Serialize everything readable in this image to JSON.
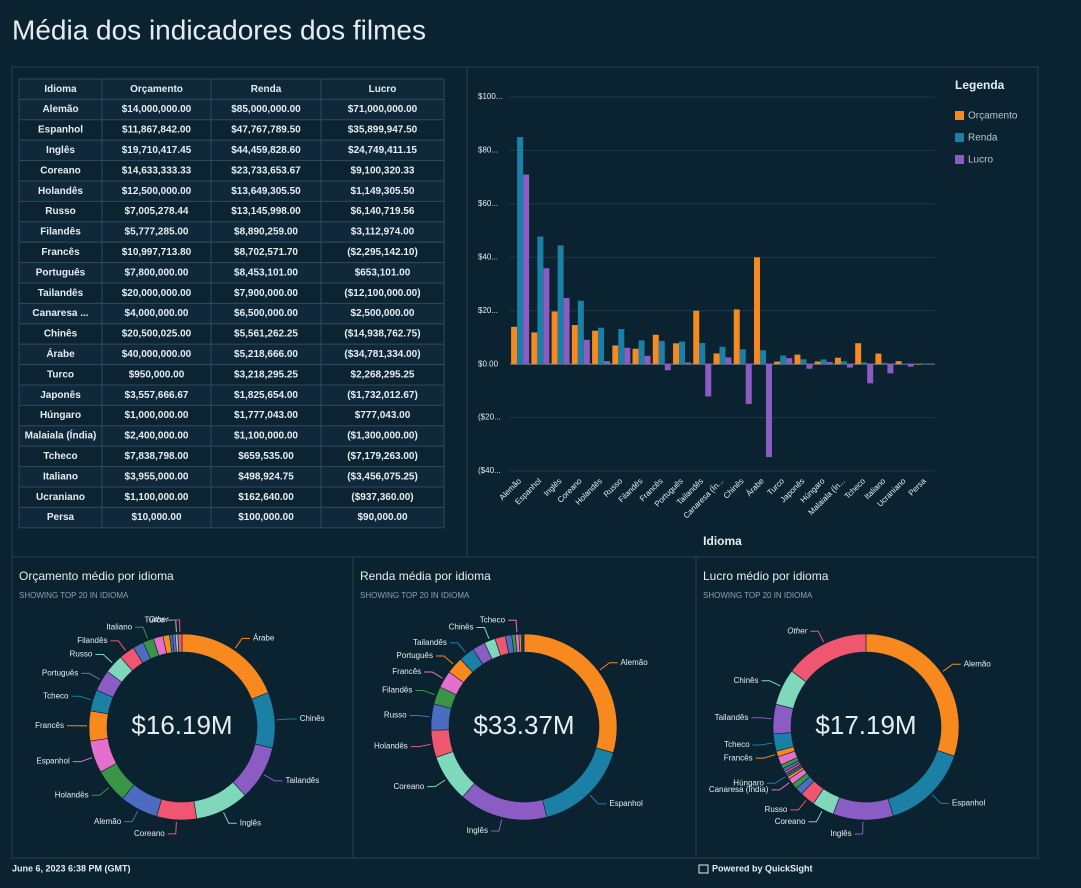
{
  "header": {
    "title": "Média dos indicadores dos filmes"
  },
  "table": {
    "columns": [
      "Idioma",
      "Orçamento",
      "Renda",
      "Lucro"
    ],
    "rows": [
      [
        "Alemão",
        "$14,000,000.00",
        "$85,000,000.00",
        "$71,000,000.00"
      ],
      [
        "Espanhol",
        "$11,867,842.00",
        "$47,767,789.50",
        "$35,899,947.50"
      ],
      [
        "Inglês",
        "$19,710,417.45",
        "$44,459,828.60",
        "$24,749,411.15"
      ],
      [
        "Coreano",
        "$14,633,333.33",
        "$23,733,653.67",
        "$9,100,320.33"
      ],
      [
        "Holandês",
        "$12,500,000.00",
        "$13,649,305.50",
        "$1,149,305.50"
      ],
      [
        "Russo",
        "$7,005,278.44",
        "$13,145,998.00",
        "$6,140,719.56"
      ],
      [
        "Filandês",
        "$5,777,285.00",
        "$8,890,259.00",
        "$3,112,974.00"
      ],
      [
        "Francês",
        "$10,997,713.80",
        "$8,702,571.70",
        "($2,295,142.10)"
      ],
      [
        "Português",
        "$7,800,000.00",
        "$8,453,101.00",
        "$653,101.00"
      ],
      [
        "Tailandês",
        "$20,000,000.00",
        "$7,900,000.00",
        "($12,100,000.00)"
      ],
      [
        "Canaresa ...",
        "$4,000,000.00",
        "$6,500,000.00",
        "$2,500,000.00"
      ],
      [
        "Chinês",
        "$20,500,025.00",
        "$5,561,262.25",
        "($14,938,762.75)"
      ],
      [
        "Árabe",
        "$40,000,000.00",
        "$5,218,666.00",
        "($34,781,334.00)"
      ],
      [
        "Turco",
        "$950,000.00",
        "$3,218,295.25",
        "$2,268,295.25"
      ],
      [
        "Japonês",
        "$3,557,666.67",
        "$1,825,654.00",
        "($1,732,012.67)"
      ],
      [
        "Húngaro",
        "$1,000,000.00",
        "$1,777,043.00",
        "$777,043.00"
      ],
      [
        "Malaiala (Índia)",
        "$2,400,000.00",
        "$1,100,000.00",
        "($1,300,000.00)"
      ],
      [
        "Tcheco",
        "$7,838,798.00",
        "$659,535.00",
        "($7,179,263.00)"
      ],
      [
        "Italiano",
        "$3,955,000.00",
        "$498,924.75",
        "($3,456,075.25)"
      ],
      [
        "Ucraniano",
        "$1,100,000.00",
        "$162,640.00",
        "($937,360.00)"
      ],
      [
        "Persa",
        "$10,000.00",
        "$100,000.00",
        "$90,000.00"
      ]
    ]
  },
  "chart_data": [
    {
      "type": "bar",
      "x_label": "Idioma",
      "legend_title": "Legenda",
      "legend": "right",
      "grid": true,
      "categories": [
        "Alemão",
        "Espanhol",
        "Inglês",
        "Coreano",
        "Holandês",
        "Russo",
        "Filandês",
        "Francês",
        "Português",
        "Tailandês",
        "Canaresa (Ín...",
        "Chinês",
        "Árabe",
        "Turco",
        "Japonês",
        "Húngaro",
        "Malaiala (Ín...",
        "Tcheco",
        "Italiano",
        "Ucraniano",
        "Persa"
      ],
      "series": [
        {
          "name": "Orçamento",
          "color": "#f7891f",
          "values": [
            14,
            11.867842,
            19.71041745,
            14.63333333,
            12.5,
            7.00527844,
            5.777285,
            10.9977138,
            7.8,
            20,
            4,
            20.500025,
            40,
            0.95,
            3.55766667,
            1,
            2.4,
            7.838798,
            3.955,
            1.1,
            0.01
          ]
        },
        {
          "name": "Renda",
          "color": "#1b80a6",
          "values": [
            85,
            47.7677895,
            44.4598286,
            23.73365367,
            13.6493055,
            13.145998,
            8.890259,
            8.7025717,
            8.453101,
            7.9,
            6.5,
            5.56126225,
            5.218666,
            3.21829525,
            1.825654,
            1.777043,
            1.1,
            0.659535,
            0.49892475,
            0.16264,
            0.1
          ]
        },
        {
          "name": "Lucro",
          "color": "#8a5cc4",
          "values": [
            71,
            35.8999475,
            24.74941115,
            9.10032033,
            1.1493055,
            6.14071956,
            3.112974,
            -2.2951421,
            0.653101,
            -12.1,
            2.5,
            -14.93876275,
            -34.781334,
            2.26829525,
            -1.73201267,
            0.777043,
            -1.3,
            -7.179263,
            -3.45607525,
            -0.93736,
            0.09
          ]
        }
      ],
      "ylim": [
        -40,
        100
      ],
      "yticks": [
        {
          "value": 100,
          "label": "$100..."
        },
        {
          "value": 80,
          "label": "$80..."
        },
        {
          "value": 60,
          "label": "$60..."
        },
        {
          "value": 40,
          "label": "$40..."
        },
        {
          "value": 20,
          "label": "$20..."
        },
        {
          "value": 0,
          "label": "$0.00"
        },
        {
          "value": -20,
          "label": "($20..."
        },
        {
          "value": -40,
          "label": "($40..."
        }
      ]
    },
    {
      "type": "pie",
      "title": "Orçamento médio por idioma",
      "subtitle": "SHOWING TOP 20 IN IDIOMA",
      "center": {
        "value": 16.19,
        "label": "$16.19M"
      },
      "colors": [
        "#f7891f",
        "#1b80a6",
        "#8a5cc4",
        "#7fd8b9",
        "#f0566f",
        "#4b6cc0",
        "#3a9646",
        "#e56fcd"
      ],
      "categories": [
        "Árabe",
        "Chinês",
        "Tailandês",
        "Inglês",
        "Coreano",
        "Alemão",
        "Holandês",
        "Espanhol",
        "Francês",
        "Tcheco",
        "Português",
        "Russo",
        "Filandês",
        null,
        "Italiano",
        null,
        null,
        null,
        null,
        "Turco",
        "Other"
      ],
      "values": [
        40,
        20.5,
        20,
        19.71,
        14.63,
        14,
        12.5,
        11.87,
        11,
        7.84,
        7.8,
        7.01,
        5.78,
        4,
        3.96,
        3.56,
        2.4,
        1.1,
        1,
        0.95,
        1.5
      ]
    },
    {
      "type": "pie",
      "title": "Renda média por idioma",
      "subtitle": "SHOWING TOP 20 IN IDIOMA",
      "center": {
        "value": 33.37,
        "label": "$33.37M"
      },
      "colors": [
        "#f7891f",
        "#1b80a6",
        "#8a5cc4",
        "#7fd8b9",
        "#f0566f",
        "#4b6cc0",
        "#3a9646",
        "#e56fcd"
      ],
      "categories": [
        "Alemão",
        "Espanhol",
        "Inglês",
        "Coreano",
        "Holandês",
        "Russo",
        "Filandês",
        "Francês",
        "Português",
        "Tailandês",
        null,
        "Chinês",
        null,
        null,
        null,
        "Tcheco",
        null,
        null,
        null,
        null,
        null
      ],
      "values": [
        85,
        47.77,
        44.46,
        23.73,
        13.65,
        13.15,
        8.89,
        8.7,
        8.45,
        7.9,
        6.5,
        5.56,
        5.22,
        3.22,
        1.83,
        1.78,
        1.1,
        0.66,
        0.5,
        0.16,
        0.1
      ]
    },
    {
      "type": "pie",
      "title": "Lucro médio por idioma",
      "subtitle": "SHOWING TOP 20 IN IDIOMA",
      "center": {
        "value": 17.19,
        "label": "$17.19M"
      },
      "colors": [
        "#f7891f",
        "#1b80a6",
        "#8a5cc4",
        "#7fd8b9",
        "#f0566f",
        "#4b6cc0",
        "#3a9646",
        "#e56fcd"
      ],
      "categories": [
        "Alemão",
        "Espanhol",
        "Inglês",
        "Coreano",
        "Russo",
        null,
        null,
        "Canaresa (Índia)",
        null,
        "Húngaro",
        null,
        null,
        null,
        null,
        null,
        null,
        "Francês",
        "Tcheco",
        "Tailandês",
        "Chinês",
        "Other"
      ],
      "values": [
        71,
        35.9,
        24.75,
        9.1,
        6.14,
        3.11,
        2.27,
        2.5,
        1.15,
        0.78,
        0.65,
        0.09,
        0.94,
        1.3,
        1.73,
        3.46,
        2.3,
        7.18,
        12.1,
        14.94,
        34.78
      ]
    }
  ],
  "footer": {
    "date": "June 6, 2023 6:38 PM (GMT)",
    "powered": "Powered by QuickSight"
  }
}
